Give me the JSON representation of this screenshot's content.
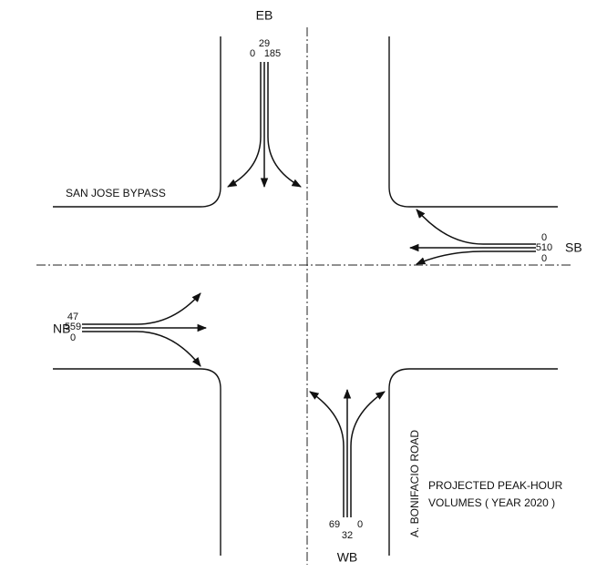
{
  "approaches": [
    {
      "label": "EB",
      "volumes": [
        29,
        0,
        185
      ]
    },
    {
      "label": "SB",
      "volumes": [
        0,
        510,
        0
      ]
    },
    {
      "label": "NB",
      "volumes": [
        47,
        559,
        0
      ]
    },
    {
      "label": "WB",
      "volumes": [
        69,
        0,
        32
      ]
    }
  ],
  "roads": [
    "SAN JOSE BYPASS",
    "A. BONIFACIO ROAD"
  ],
  "note": [
    "PROJECTED PEAK-HOUR",
    "VOLUMES ( YEAR 2020 )"
  ]
}
